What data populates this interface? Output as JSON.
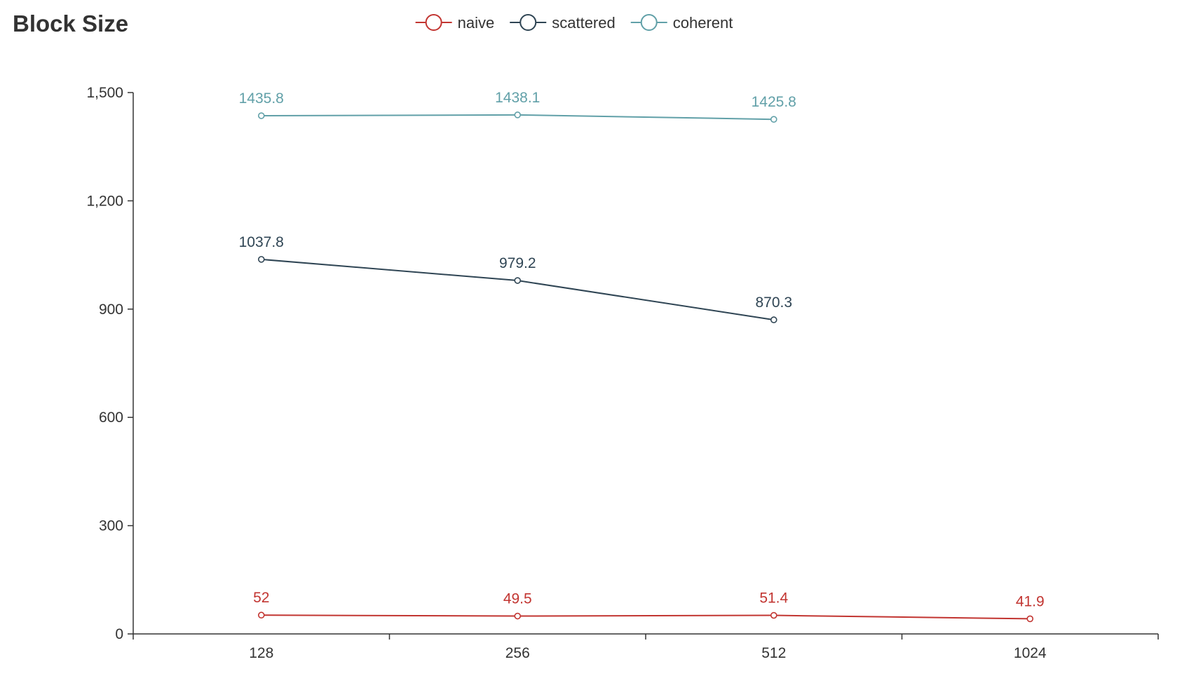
{
  "chart_data": {
    "type": "line",
    "title": "Block Size",
    "xlabel": "",
    "ylabel": "",
    "categories": [
      "128",
      "256",
      "512",
      "1024"
    ],
    "ylim": [
      0,
      1500
    ],
    "yticks": [
      0,
      300,
      600,
      900,
      1200,
      1500
    ],
    "ytick_labels": [
      "0",
      "300",
      "600",
      "900",
      "1,200",
      "1,500"
    ],
    "grid": false,
    "legend_position": "top-center",
    "series": [
      {
        "name": "naive",
        "color": "#c23531",
        "values": [
          52,
          49.5,
          51.4,
          41.9
        ],
        "labels": [
          "52",
          "49.5",
          "51.4",
          "41.9"
        ]
      },
      {
        "name": "scattered",
        "color": "#2f4554",
        "values": [
          1037.8,
          979.2,
          870.3,
          null
        ],
        "labels": [
          "1037.8",
          "979.2",
          "870.3",
          ""
        ]
      },
      {
        "name": "coherent",
        "color": "#61a0a8",
        "values": [
          1435.8,
          1438.1,
          1425.8,
          null
        ],
        "labels": [
          "1435.8",
          "1438.1",
          "1425.8",
          ""
        ]
      }
    ]
  }
}
